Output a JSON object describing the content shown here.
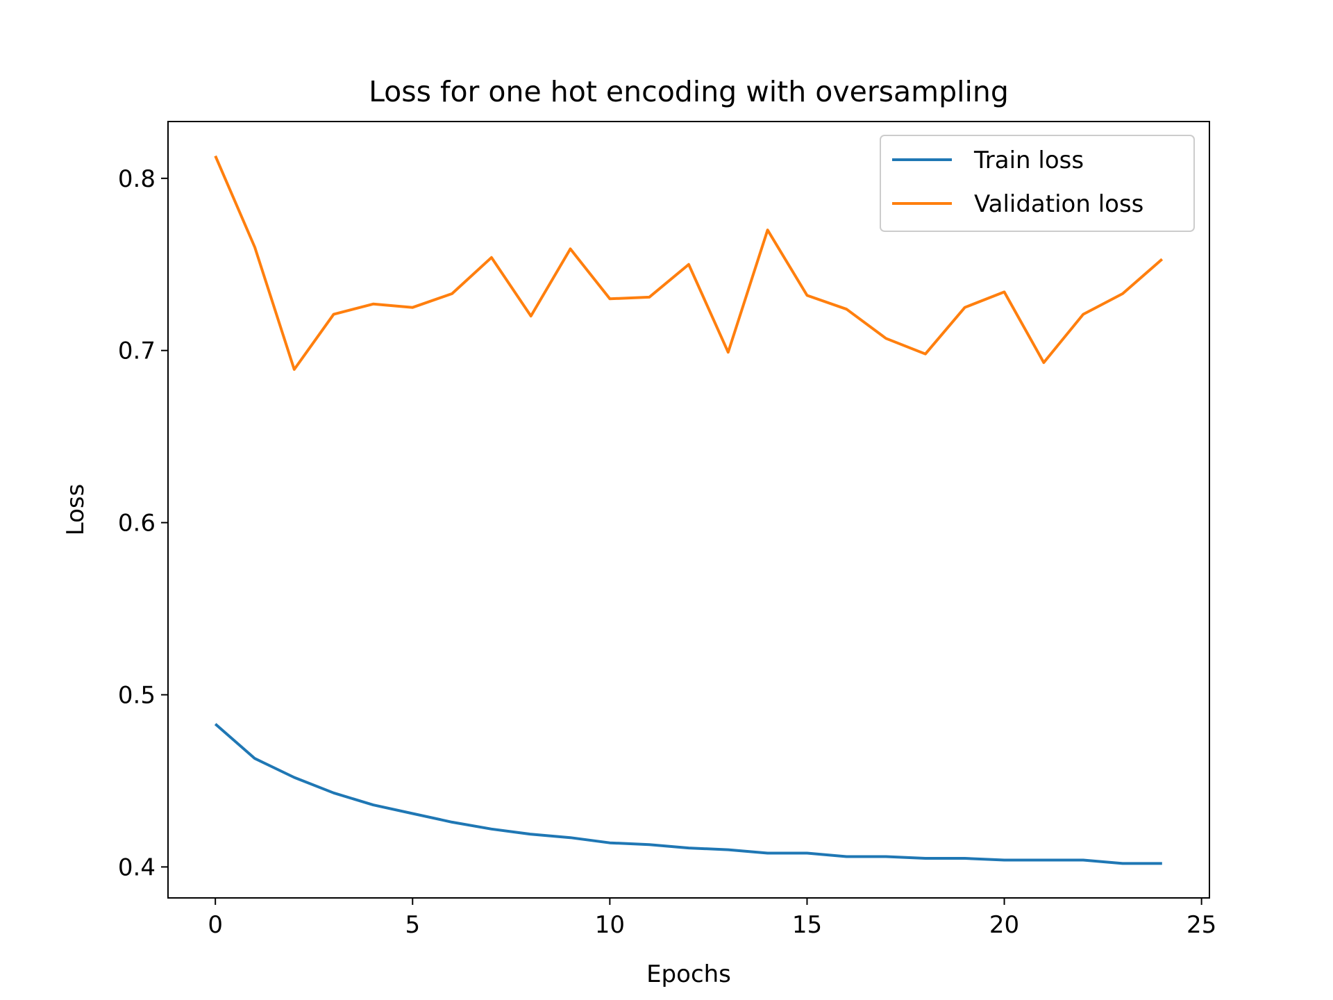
{
  "chart_data": {
    "type": "line",
    "title": "Loss for one hot encoding with oversampling",
    "xlabel": "Epochs",
    "ylabel": "Loss",
    "xlim": [
      -1.2,
      25.2
    ],
    "ylim": [
      0.382,
      0.833
    ],
    "x_ticks": [
      0,
      5,
      10,
      15,
      20,
      25
    ],
    "y_ticks": [
      0.4,
      0.5,
      0.6,
      0.7,
      0.8
    ],
    "x_tick_labels": [
      "0",
      "5",
      "10",
      "15",
      "20",
      "25"
    ],
    "y_tick_labels": [
      "0.4",
      "0.5",
      "0.6",
      "0.7",
      "0.8"
    ],
    "grid": false,
    "legend_position": "top-right",
    "x": [
      0,
      1,
      2,
      3,
      4,
      5,
      6,
      7,
      8,
      9,
      10,
      11,
      12,
      13,
      14,
      15,
      16,
      17,
      18,
      19,
      20,
      21,
      22,
      23,
      24
    ],
    "series": [
      {
        "name": "Train loss",
        "color": "#1f77b4",
        "values": [
          0.483,
          0.463,
          0.452,
          0.443,
          0.436,
          0.431,
          0.426,
          0.422,
          0.419,
          0.417,
          0.414,
          0.413,
          0.411,
          0.41,
          0.408,
          0.408,
          0.406,
          0.406,
          0.405,
          0.405,
          0.404,
          0.404,
          0.404,
          0.402,
          0.402
        ]
      },
      {
        "name": "Validation loss",
        "color": "#ff7f0e",
        "values": [
          0.813,
          0.76,
          0.689,
          0.721,
          0.727,
          0.725,
          0.733,
          0.754,
          0.72,
          0.759,
          0.73,
          0.731,
          0.75,
          0.699,
          0.77,
          0.732,
          0.724,
          0.707,
          0.698,
          0.725,
          0.734,
          0.693,
          0.721,
          0.733,
          0.753
        ]
      }
    ]
  }
}
